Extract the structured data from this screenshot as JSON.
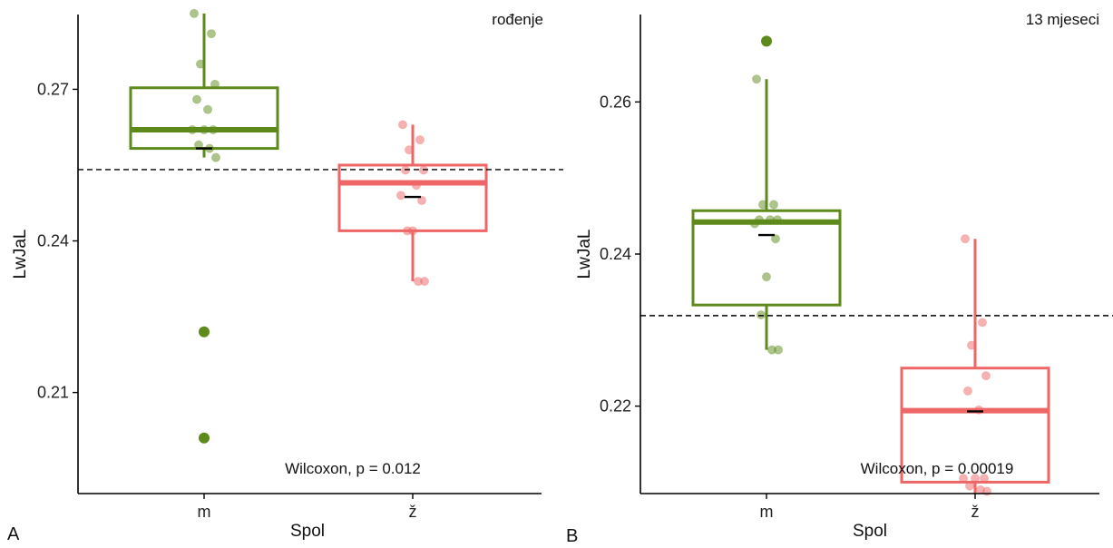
{
  "colors": {
    "m": "#5e8a1c",
    "z": "#ee6666",
    "mean": "#000000",
    "axis": "#000000",
    "ref": "#000000"
  },
  "chart_data": [
    {
      "type": "box",
      "panel_label": "A",
      "facet_label": "rođenje",
      "xlabel": "Spol",
      "ylabel": "LwJaL",
      "ylim": [
        0.19,
        0.2848
      ],
      "yticks": [
        0.21,
        0.24,
        0.27
      ],
      "ytick_labels": [
        "0.21",
        "0.24",
        "0.27"
      ],
      "categories": [
        "m",
        "ž"
      ],
      "reference_line": 0.2541,
      "annotation": "Wilcoxon, p = 0.012",
      "groups": [
        {
          "category": "m",
          "color_key": "m",
          "q1": 0.2583,
          "median": 0.262,
          "q3": 0.2703,
          "whisker_low": 0.2565,
          "whisker_high": 0.285,
          "mean": 0.2583,
          "points": [
            0.285,
            0.281,
            0.275,
            0.271,
            0.268,
            0.266,
            0.262,
            0.262,
            0.262,
            0.259,
            0.2583,
            0.2565
          ],
          "outliers": [
            0.222,
            0.201
          ]
        },
        {
          "category": "ž",
          "color_key": "z",
          "q1": 0.242,
          "median": 0.2515,
          "q3": 0.255,
          "whisker_low": 0.232,
          "whisker_high": 0.263,
          "mean": 0.2487,
          "points": [
            0.263,
            0.26,
            0.258,
            0.254,
            0.254,
            0.251,
            0.249,
            0.248,
            0.242,
            0.242,
            0.232,
            0.232
          ],
          "outliers": []
        }
      ]
    },
    {
      "type": "box",
      "panel_label": "B",
      "facet_label": "13 mjeseci",
      "xlabel": "Spol",
      "ylabel": "LwJaL",
      "ylim": [
        0.2085,
        0.2715
      ],
      "yticks": [
        0.22,
        0.24,
        0.26
      ],
      "ytick_labels": [
        "0.22",
        "0.24",
        "0.26"
      ],
      "categories": [
        "m",
        "ž"
      ],
      "reference_line": 0.2319,
      "annotation": "Wilcoxon, p = 0.00019",
      "groups": [
        {
          "category": "m",
          "color_key": "m",
          "q1": 0.2333,
          "median": 0.2442,
          "q3": 0.2457,
          "whisker_low": 0.2274,
          "whisker_high": 0.263,
          "mean": 0.2425,
          "points": [
            0.263,
            0.2465,
            0.2465,
            0.2445,
            0.2445,
            0.2445,
            0.244,
            0.242,
            0.237,
            0.232,
            0.2274,
            0.2274
          ],
          "outliers": [
            0.268
          ]
        },
        {
          "category": "ž",
          "color_key": "z",
          "q1": 0.21,
          "median": 0.2194,
          "q3": 0.225,
          "whisker_low": 0.2085,
          "whisker_high": 0.242,
          "mean": 0.2193,
          "points": [
            0.242,
            0.231,
            0.228,
            0.224,
            0.222,
            0.2195,
            0.2105,
            0.2105,
            0.2105,
            0.2095,
            0.209,
            0.2088
          ],
          "outliers": []
        }
      ]
    }
  ]
}
